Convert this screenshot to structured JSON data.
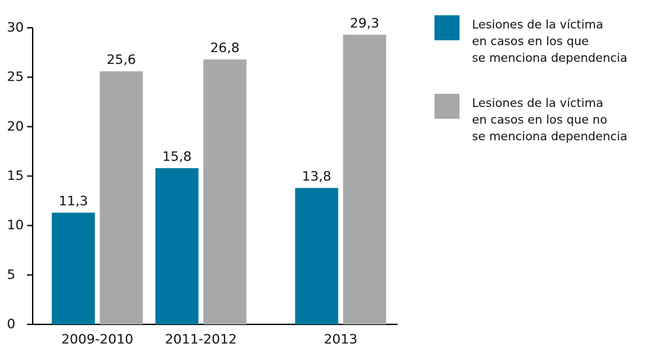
{
  "chart_data": {
    "type": "bar",
    "categories": [
      "2009-2010",
      "2011-2012",
      "2013"
    ],
    "series": [
      {
        "name": "Lesiones de la víctima\nen casos en los que\nse menciona dependencia",
        "color": "#0077a0",
        "values": [
          11.3,
          15.8,
          13.8
        ],
        "value_labels": [
          "11,3",
          "15,8",
          "13,8"
        ]
      },
      {
        "name": "Lesiones de la víctima\nen casos en los que no\nse menciona dependencia",
        "color": "#a7a8aa",
        "values": [
          25.6,
          26.8,
          29.3
        ],
        "value_labels": [
          "25,6",
          "26,8",
          "29,3"
        ]
      }
    ],
    "ylim": [
      0,
      30
    ],
    "yticks": [
      0,
      5,
      10,
      15,
      20,
      25,
      30
    ],
    "legend": "right"
  }
}
